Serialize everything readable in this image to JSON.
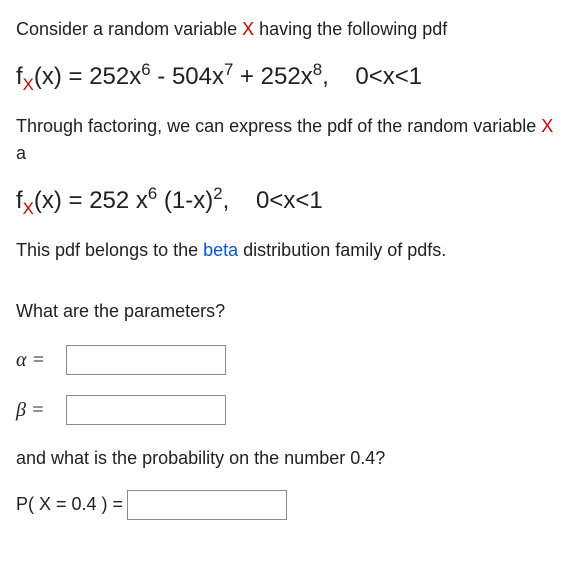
{
  "intro": {
    "prefix": "Consider a random variable ",
    "var": "X",
    "suffix": " having the following pdf"
  },
  "formula1": {
    "fn": "f",
    "sub": "X",
    "arg": "(x) = 252x",
    "p1": "6",
    "mid1": " - 504x",
    "p2": "7",
    "mid2": " + 252x",
    "p3": "8",
    "domain": ",    0<x<1"
  },
  "factor_line": {
    "prefix": "Through factoring, we can express the pdf of the random variable ",
    "var": "X",
    "suffix": " a"
  },
  "formula2": {
    "fn": "f",
    "sub": "X",
    "arg": "(x) = 252 x",
    "p1": "6",
    "mid": " (1-x)",
    "p2": "2",
    "domain": ",    0<x<1"
  },
  "family_line": {
    "prefix": "This pdf belongs to the ",
    "dist": "beta",
    "suffix": " distribution family of pdfs."
  },
  "question": "What are the parameters?",
  "alpha_label": "α =",
  "beta_label": "β =",
  "prob_question": "and what is the probability on the number 0.4?",
  "prob_label": "P( X = 0.4 ) =",
  "inputs": {
    "alpha": "",
    "beta": "",
    "prob": ""
  },
  "style": {
    "var_color": "#d90000",
    "link_color": "#0055ee",
    "text_color": "#212121",
    "input_border": "#8a8a8a"
  }
}
